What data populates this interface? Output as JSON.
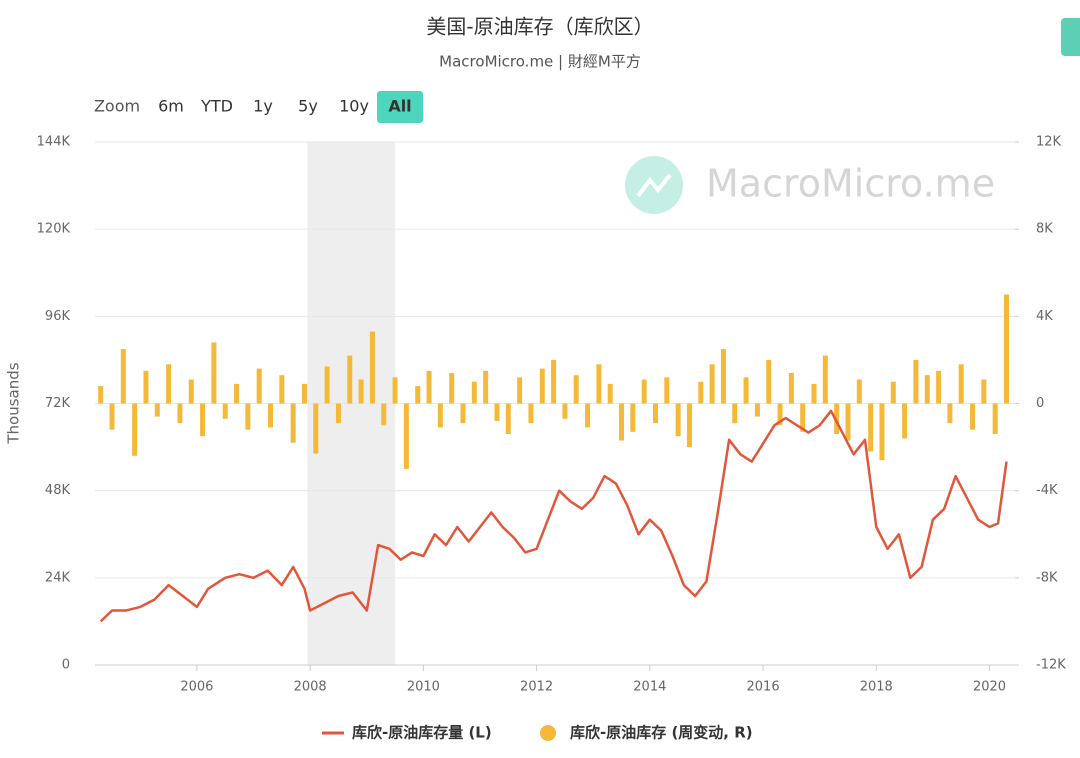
{
  "chart_data": {
    "type": "combo",
    "title": "美国-原油库存（库欣区）",
    "subtitle": "MacroMicro.me | 財經M平方",
    "y_label": "Thousands",
    "watermark": "MacroMicro.me",
    "xlim": [
      2004.2,
      2020.45
    ],
    "xticks": [
      2006,
      2008,
      2010,
      2012,
      2014,
      2016,
      2018,
      2020
    ],
    "ylim": [
      0,
      144000
    ],
    "yticks": [
      0,
      {
        "value": 24000,
        "label": "24K"
      },
      {
        "value": 48000,
        "label": "48K"
      },
      {
        "value": 72000,
        "label": "72K"
      },
      {
        "value": 96000,
        "label": "96K"
      },
      {
        "value": 120000,
        "label": "120K"
      },
      {
        "value": 144000,
        "label": "144K"
      }
    ],
    "y2lim": [
      -12000,
      12000
    ],
    "y2ticks": [
      {
        "value": -12000,
        "label": "-12K"
      },
      {
        "value": -8000,
        "label": "-8K"
      },
      {
        "value": -4000,
        "label": "-4K"
      },
      0,
      {
        "value": 4000,
        "label": "4K"
      },
      {
        "value": 8000,
        "label": "8K"
      },
      {
        "value": 12000,
        "label": "12K"
      }
    ],
    "grid": true,
    "shade": [
      2007.95,
      2009.5
    ],
    "series": [
      {
        "name": "库欣-原油库存量 (L)",
        "type": "line",
        "color": "#e0573c",
        "x": [
          2004.3,
          2004.5,
          2004.75,
          2005.0,
          2005.25,
          2005.5,
          2005.75,
          2006.0,
          2006.2,
          2006.5,
          2006.75,
          2007.0,
          2007.25,
          2007.5,
          2007.7,
          2007.9,
          2008.0,
          2008.25,
          2008.5,
          2008.75,
          2009.0,
          2009.2,
          2009.4,
          2009.6,
          2009.8,
          2010.0,
          2010.2,
          2010.4,
          2010.6,
          2010.8,
          2011.0,
          2011.2,
          2011.4,
          2011.6,
          2011.8,
          2012.0,
          2012.2,
          2012.4,
          2012.6,
          2012.8,
          2013.0,
          2013.2,
          2013.4,
          2013.6,
          2013.8,
          2014.0,
          2014.2,
          2014.4,
          2014.6,
          2014.8,
          2015.0,
          2015.2,
          2015.4,
          2015.6,
          2015.8,
          2016.0,
          2016.2,
          2016.4,
          2016.6,
          2016.8,
          2017.0,
          2017.2,
          2017.4,
          2017.6,
          2017.8,
          2018.0,
          2018.2,
          2018.4,
          2018.6,
          2018.8,
          2019.0,
          2019.2,
          2019.4,
          2019.6,
          2019.8,
          2020.0,
          2020.15,
          2020.3
        ],
        "values": [
          12000,
          15000,
          15000,
          16000,
          18000,
          22000,
          19000,
          16000,
          21000,
          24000,
          25000,
          24000,
          26000,
          22000,
          27000,
          21000,
          15000,
          17000,
          19000,
          20000,
          15000,
          33000,
          32000,
          29000,
          31000,
          30000,
          36000,
          33000,
          38000,
          34000,
          38000,
          42000,
          38000,
          35000,
          31000,
          32000,
          40000,
          48000,
          45000,
          43000,
          46000,
          52000,
          50000,
          44000,
          36000,
          40000,
          37000,
          30000,
          22000,
          19000,
          23000,
          42000,
          62000,
          58000,
          56000,
          61000,
          66000,
          68000,
          66000,
          64000,
          66000,
          70000,
          64000,
          58000,
          62000,
          38000,
          32000,
          36000,
          24000,
          27000,
          40000,
          43000,
          52000,
          46000,
          40000,
          38000,
          39000,
          56000
        ]
      },
      {
        "name": "库欣-原油库存 (周变动, R)",
        "type": "bar",
        "axis": "y2",
        "color": "#f5b93a",
        "x": [
          2004.3,
          2004.5,
          2004.7,
          2004.9,
          2005.1,
          2005.3,
          2005.5,
          2005.7,
          2005.9,
          2006.1,
          2006.3,
          2006.5,
          2006.7,
          2006.9,
          2007.1,
          2007.3,
          2007.5,
          2007.7,
          2007.9,
          2008.1,
          2008.3,
          2008.5,
          2008.7,
          2008.9,
          2009.1,
          2009.3,
          2009.5,
          2009.7,
          2009.9,
          2010.1,
          2010.3,
          2010.5,
          2010.7,
          2010.9,
          2011.1,
          2011.3,
          2011.5,
          2011.7,
          2011.9,
          2012.1,
          2012.3,
          2012.5,
          2012.7,
          2012.9,
          2013.1,
          2013.3,
          2013.5,
          2013.7,
          2013.9,
          2014.1,
          2014.3,
          2014.5,
          2014.7,
          2014.9,
          2015.1,
          2015.3,
          2015.5,
          2015.7,
          2015.9,
          2016.1,
          2016.3,
          2016.5,
          2016.7,
          2016.9,
          2017.1,
          2017.3,
          2017.5,
          2017.7,
          2017.9,
          2018.1,
          2018.3,
          2018.5,
          2018.7,
          2018.9,
          2019.1,
          2019.3,
          2019.5,
          2019.7,
          2019.9,
          2020.1,
          2020.3
        ],
        "values": [
          800,
          -1200,
          2500,
          -2400,
          1500,
          -600,
          1800,
          -900,
          1100,
          -1500,
          2800,
          -700,
          900,
          -1200,
          1600,
          -1100,
          1300,
          -1800,
          900,
          -2300,
          1700,
          -900,
          2200,
          1100,
          3300,
          -1000,
          1200,
          -3000,
          800,
          1500,
          -1100,
          1400,
          -900,
          1000,
          1500,
          -800,
          -1400,
          1200,
          -900,
          1600,
          2000,
          -700,
          1300,
          -1100,
          1800,
          900,
          -1700,
          -1300,
          1100,
          -900,
          1200,
          -1500,
          -2000,
          1000,
          1800,
          2500,
          -900,
          1200,
          -600,
          2000,
          -1000,
          1400,
          -1300,
          900,
          2200,
          -1400,
          -1700,
          1100,
          -2200,
          -2600,
          1000,
          -1600,
          2000,
          1300,
          1500,
          -900,
          1800,
          -1200,
          1100,
          -1400,
          5000
        ]
      }
    ]
  },
  "toolbar": {
    "label": "Zoom",
    "options": [
      "6m",
      "YTD",
      "1y",
      "5y",
      "10y",
      "All"
    ],
    "active": 5
  }
}
